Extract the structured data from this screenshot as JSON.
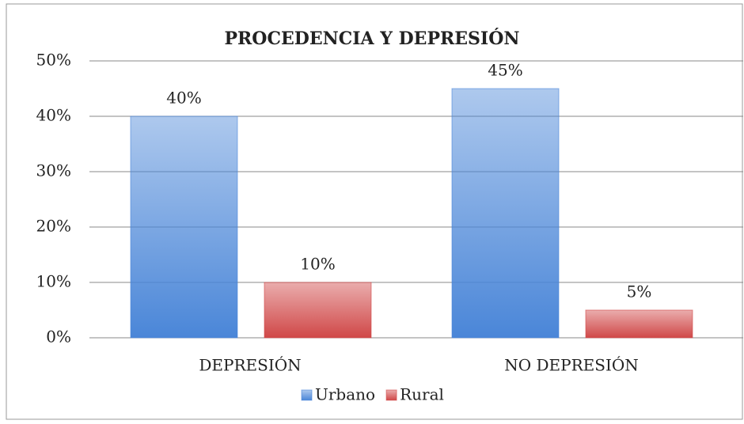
{
  "chart_data": {
    "type": "bar",
    "title": "PROCEDENCIA Y DEPRESIÓN",
    "categories": [
      "DEPRESIÓN",
      "NO DEPRESIÓN"
    ],
    "series": [
      {
        "name": "Urbano",
        "color": "#4a86d8",
        "values": [
          40,
          45
        ],
        "value_labels": [
          "40%",
          "45%"
        ]
      },
      {
        "name": "Rural",
        "color": "#d04848",
        "values": [
          10,
          5
        ],
        "value_labels": [
          "10%",
          "5%"
        ]
      }
    ],
    "ylim": [
      0,
      50
    ],
    "yticks": [
      {
        "value": 0,
        "label": "0%"
      },
      {
        "value": 10,
        "label": "10%"
      },
      {
        "value": 20,
        "label": "20%"
      },
      {
        "value": 30,
        "label": "30%"
      },
      {
        "value": 40,
        "label": "40%"
      },
      {
        "value": 50,
        "label": "50%"
      }
    ],
    "grid": true,
    "legend": "bottom"
  }
}
